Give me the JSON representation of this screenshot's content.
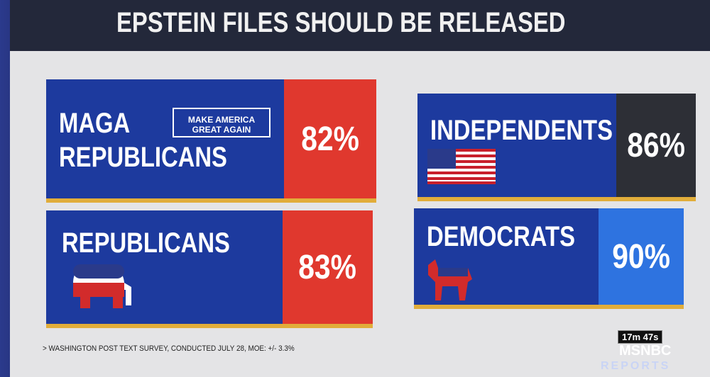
{
  "header": {
    "title": "EPSTEIN FILES SHOULD BE RELEASED"
  },
  "panels": [
    {
      "label": [
        "MAGA",
        "REPUBLICANS"
      ],
      "badge": "MAKE AMERICA GREAT AGAIN",
      "value": "82%"
    },
    {
      "label": [
        "INDEPENDENTS"
      ],
      "value": "86%"
    },
    {
      "label": [
        "REPUBLICANS"
      ],
      "value": "83%"
    },
    {
      "label": [
        "DEMOCRATS"
      ],
      "value": "90%"
    }
  ],
  "footer": {
    "source": "> WASHINGTON POST TEXT SURVEY, CONDUCTED JULY 28, MOE: +/- 3.3%"
  },
  "broadcast": {
    "timer": "17m 47s",
    "network": "MSNBC",
    "show": "REPORTS"
  }
}
